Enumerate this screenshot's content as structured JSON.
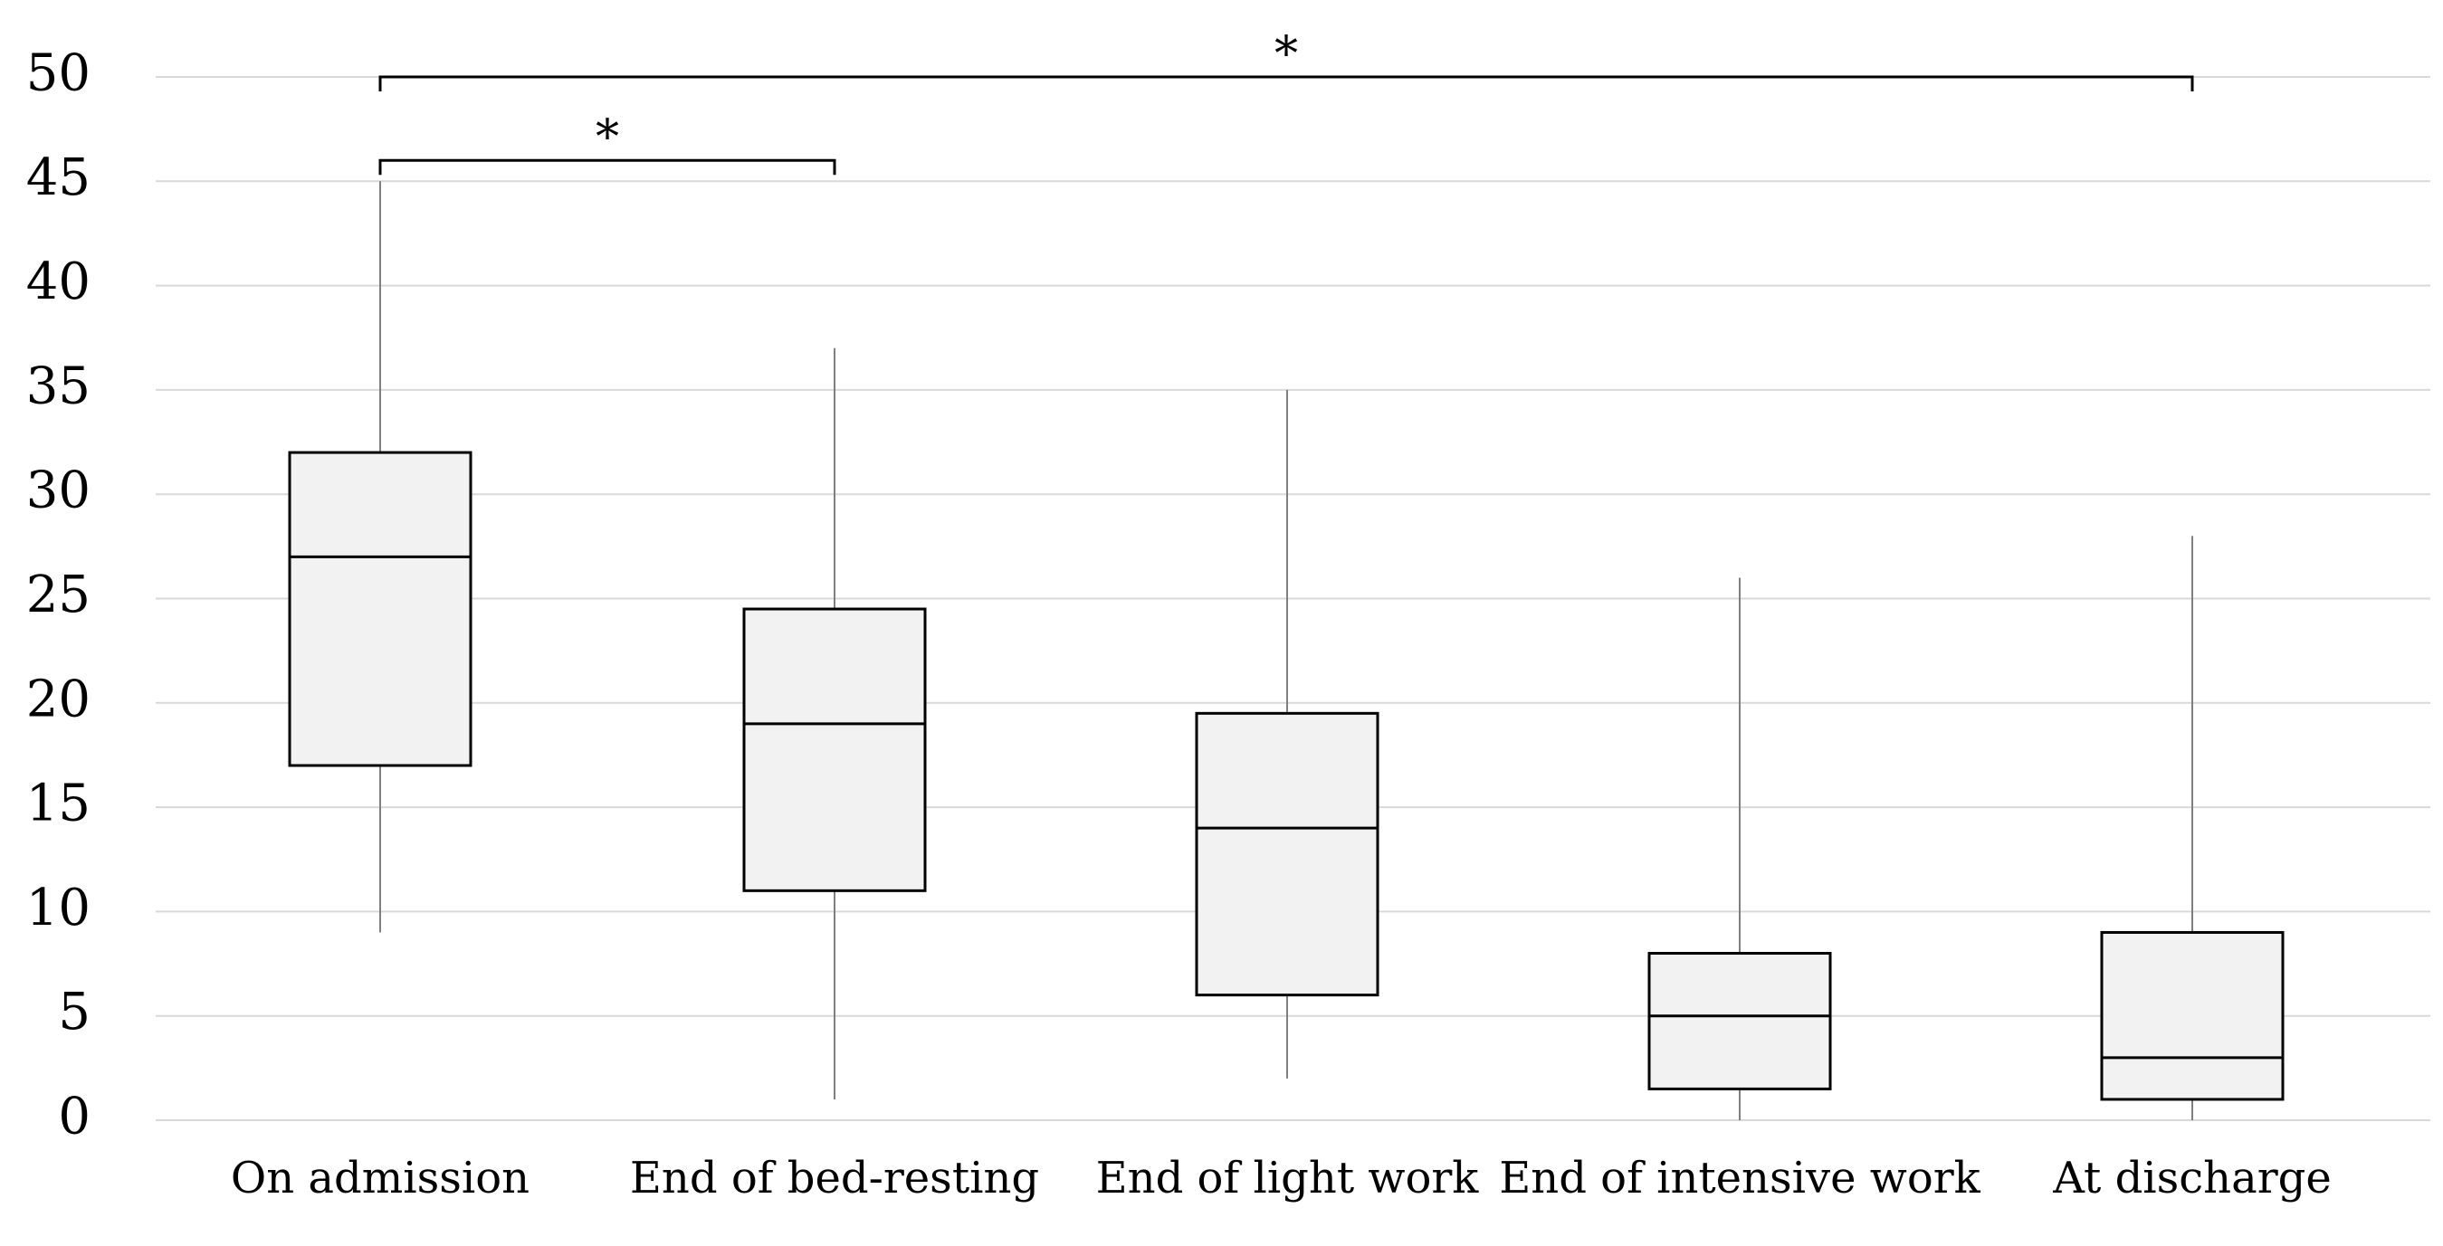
{
  "chart_data": {
    "type": "box",
    "title": "",
    "xlabel": "",
    "ylabel": "",
    "ylim": [
      0,
      50
    ],
    "y_ticks": [
      "0",
      "5",
      "10",
      "15",
      "20",
      "25",
      "30",
      "35",
      "40",
      "45",
      "50"
    ],
    "grid": true,
    "categories": [
      "On admission",
      "End of bed-resting",
      "End of light work",
      "End of intensive work",
      "At discharge"
    ],
    "boxes": [
      {
        "min": 9,
        "q1": 17,
        "median": 27,
        "q3": 32,
        "max": 45
      },
      {
        "min": 1,
        "q1": 11,
        "median": 19,
        "q3": 24.5,
        "max": 37
      },
      {
        "min": 2,
        "q1": 6,
        "median": 14,
        "q3": 19.5,
        "max": 35
      },
      {
        "min": 0,
        "q1": 1.5,
        "median": 5,
        "q3": 8,
        "max": 26
      },
      {
        "min": 0,
        "q1": 1,
        "median": 3,
        "q3": 9,
        "max": 28
      }
    ],
    "significance": [
      {
        "from": 0,
        "to": 1,
        "level": 46,
        "label": "*"
      },
      {
        "from": 0,
        "to": 4,
        "level": 50,
        "label": "*"
      }
    ]
  }
}
